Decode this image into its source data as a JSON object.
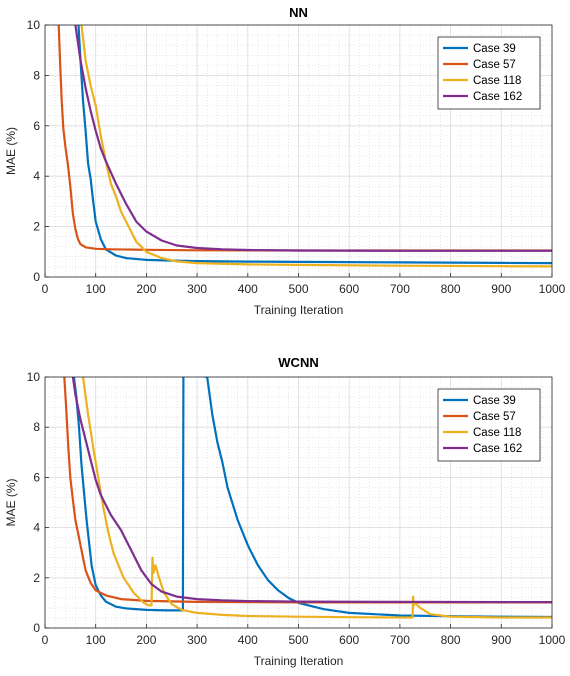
{
  "colors": {
    "case39": "#0072BD",
    "case57": "#D95319",
    "case118": "#EDB120",
    "case162": "#7E2F8E"
  },
  "chart_data": [
    {
      "type": "line",
      "title": "NN",
      "xlabel": "Training Iteration",
      "ylabel": "MAE (%)",
      "xlim": [
        0,
        1000
      ],
      "ylim": [
        0,
        10
      ],
      "xticks": [
        "0",
        "100",
        "200",
        "300",
        "400",
        "500",
        "600",
        "700",
        "800",
        "900",
        "1000"
      ],
      "yticks": [
        "0",
        "2",
        "4",
        "6",
        "8",
        "10"
      ],
      "grid": true,
      "minor_grid": true,
      "legend_position": "top-right",
      "series": [
        {
          "name": "Case 39",
          "color": "#0072BD",
          "x": [
            66,
            70,
            75,
            80,
            85,
            90,
            95,
            100,
            110,
            120,
            140,
            160,
            200,
            250,
            300,
            400,
            500,
            600,
            700,
            800,
            900,
            1000
          ],
          "y": [
            10,
            8.6,
            7.0,
            5.8,
            4.5,
            3.9,
            3.0,
            2.2,
            1.5,
            1.1,
            0.85,
            0.75,
            0.68,
            0.65,
            0.63,
            0.61,
            0.6,
            0.59,
            0.58,
            0.57,
            0.56,
            0.55
          ]
        },
        {
          "name": "Case 57",
          "color": "#D95319",
          "x": [
            27,
            30,
            33,
            36,
            40,
            45,
            50,
            55,
            60,
            65,
            70,
            80,
            100,
            130,
            200,
            300,
            500,
            700,
            1000
          ],
          "y": [
            10,
            8.4,
            7.0,
            5.9,
            5.2,
            4.5,
            3.6,
            2.5,
            1.9,
            1.5,
            1.3,
            1.18,
            1.12,
            1.1,
            1.08,
            1.06,
            1.05,
            1.05,
            1.05
          ]
        },
        {
          "name": "Case 118",
          "color": "#EDB120",
          "x": [
            72,
            80,
            90,
            100,
            110,
            120,
            130,
            140,
            150,
            160,
            180,
            200,
            230,
            260,
            300,
            400,
            500,
            700,
            900,
            1000
          ],
          "y": [
            10,
            8.6,
            7.6,
            6.8,
            5.6,
            4.6,
            3.7,
            3.2,
            2.6,
            2.2,
            1.4,
            1.0,
            0.75,
            0.62,
            0.55,
            0.5,
            0.48,
            0.45,
            0.43,
            0.42
          ]
        },
        {
          "name": "Case 162",
          "color": "#7E2F8E",
          "x": [
            60,
            70,
            80,
            90,
            100,
            110,
            120,
            140,
            160,
            180,
            200,
            230,
            260,
            300,
            350,
            400,
            500,
            700,
            1000
          ],
          "y": [
            10,
            8.6,
            7.5,
            6.6,
            5.8,
            5.1,
            4.6,
            3.7,
            2.9,
            2.2,
            1.8,
            1.45,
            1.25,
            1.15,
            1.1,
            1.07,
            1.05,
            1.04,
            1.04
          ]
        }
      ]
    },
    {
      "type": "line",
      "title": "WCNN",
      "xlabel": "Training Iteration",
      "ylabel": "MAE (%)",
      "xlim": [
        0,
        1000
      ],
      "ylim": [
        0,
        10
      ],
      "xticks": [
        "0",
        "100",
        "200",
        "300",
        "400",
        "500",
        "600",
        "700",
        "800",
        "900",
        "1000"
      ],
      "yticks": [
        "0",
        "2",
        "4",
        "6",
        "8",
        "10"
      ],
      "grid": true,
      "minor_grid": true,
      "legend_position": "top-right",
      "series": [
        {
          "name": "Case 39",
          "color": "#0072BD",
          "x": [
            57,
            62,
            67,
            72,
            77,
            82,
            87,
            92,
            100,
            110,
            120,
            140,
            160,
            200,
            240,
            272,
            273,
            273,
            274,
            320,
            330,
            340,
            350,
            360,
            380,
            400,
            420,
            440,
            460,
            480,
            500,
            550,
            600,
            700,
            800,
            900,
            1000
          ],
          "y": [
            10,
            9.2,
            8.0,
            6.5,
            5.4,
            4.3,
            3.4,
            2.5,
            1.7,
            1.3,
            1.05,
            0.85,
            0.78,
            0.72,
            0.7,
            0.7,
            10.0,
            10.2,
            10.2,
            10.0,
            8.5,
            7.4,
            6.6,
            5.6,
            4.3,
            3.3,
            2.5,
            1.9,
            1.5,
            1.2,
            1.0,
            0.75,
            0.6,
            0.5,
            0.47,
            0.45,
            0.44
          ]
        },
        {
          "name": "Case 57",
          "color": "#D95319",
          "x": [
            38,
            42,
            46,
            50,
            55,
            60,
            65,
            70,
            75,
            80,
            90,
            100,
            120,
            150,
            200,
            300,
            400,
            500,
            700,
            1000
          ],
          "y": [
            10,
            8.7,
            7.2,
            6.0,
            5.1,
            4.3,
            3.8,
            3.3,
            2.8,
            2.3,
            1.8,
            1.5,
            1.3,
            1.15,
            1.08,
            1.04,
            1.03,
            1.02,
            1.02,
            1.02
          ]
        },
        {
          "name": "Case 118",
          "color": "#EDB120",
          "x": [
            75,
            85,
            95,
            105,
            115,
            125,
            135,
            145,
            155,
            165,
            175,
            185,
            195,
            205,
            210,
            212,
            214,
            218,
            225,
            235,
            250,
            270,
            300,
            350,
            400,
            500,
            600,
            700,
            725,
            726,
            727,
            730,
            740,
            760,
            800,
            900,
            1000
          ],
          "y": [
            10,
            8.5,
            7.2,
            6.0,
            4.8,
            3.8,
            3.0,
            2.5,
            2.0,
            1.7,
            1.4,
            1.2,
            1.0,
            0.9,
            0.9,
            2.8,
            2.2,
            2.5,
            2.0,
            1.4,
            0.95,
            0.72,
            0.6,
            0.52,
            0.48,
            0.45,
            0.43,
            0.42,
            0.42,
            1.25,
            0.9,
            1.0,
            0.8,
            0.55,
            0.45,
            0.42,
            0.42
          ]
        },
        {
          "name": "Case 162",
          "color": "#7E2F8E",
          "x": [
            55,
            60,
            70,
            80,
            90,
            100,
            110,
            120,
            130,
            150,
            170,
            190,
            210,
            230,
            260,
            300,
            350,
            400,
            500,
            700,
            1000
          ],
          "y": [
            10,
            9.3,
            8.3,
            7.5,
            6.7,
            5.9,
            5.3,
            4.9,
            4.5,
            3.9,
            3.1,
            2.3,
            1.75,
            1.45,
            1.25,
            1.15,
            1.1,
            1.07,
            1.05,
            1.04,
            1.03
          ]
        }
      ]
    }
  ]
}
